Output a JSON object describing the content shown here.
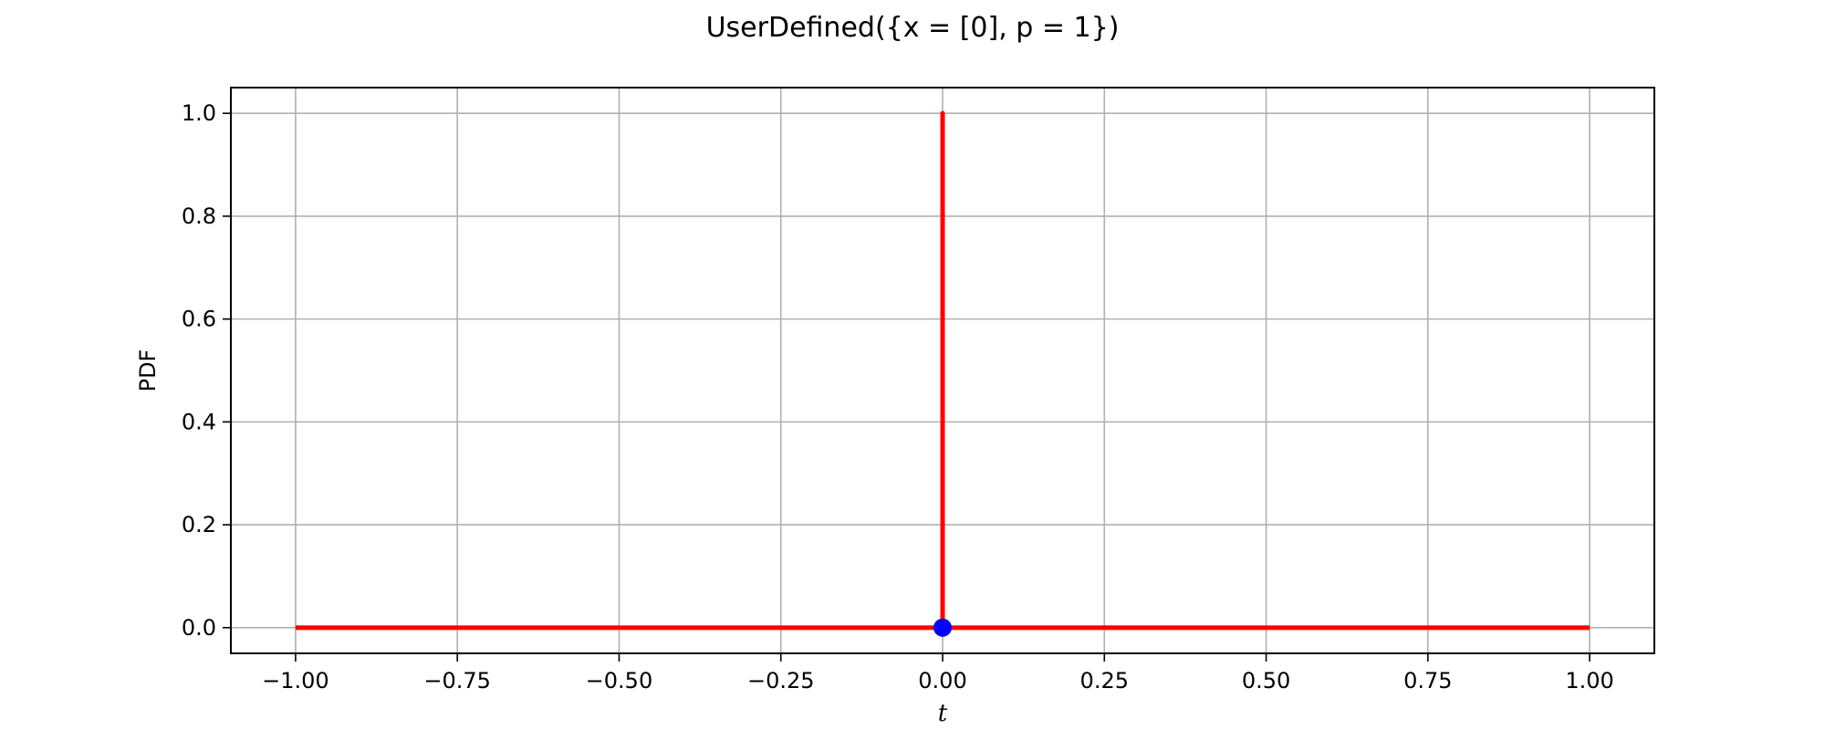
{
  "chart_data": {
    "type": "line",
    "title": "UserDefined({x = [0], p = 1})",
    "xlabel": "t",
    "ylabel": "PDF",
    "xlim": [
      -1.1,
      1.1
    ],
    "ylim": [
      -0.05,
      1.05
    ],
    "x_ticks": [
      -1.0,
      -0.75,
      -0.5,
      -0.25,
      0.0,
      0.25,
      0.5,
      0.75,
      1.0
    ],
    "x_tick_labels": [
      "−1.00",
      "−0.75",
      "−0.50",
      "−0.25",
      "0.00",
      "0.25",
      "0.50",
      "0.75",
      "1.00"
    ],
    "y_ticks": [
      0.0,
      0.2,
      0.4,
      0.6,
      0.8,
      1.0
    ],
    "y_tick_labels": [
      "0.0",
      "0.2",
      "0.4",
      "0.6",
      "0.8",
      "1.0"
    ],
    "grid": true,
    "series": [
      {
        "kind": "line",
        "color": "#ff0000",
        "points": [
          [
            -1.0,
            0.0
          ],
          [
            0.0,
            0.0
          ],
          [
            0.0,
            1.0
          ],
          [
            0.0,
            0.0
          ],
          [
            1.0,
            0.0
          ]
        ]
      },
      {
        "kind": "point",
        "color": "#0000ff",
        "points": [
          [
            0.0,
            0.0
          ]
        ]
      }
    ]
  }
}
